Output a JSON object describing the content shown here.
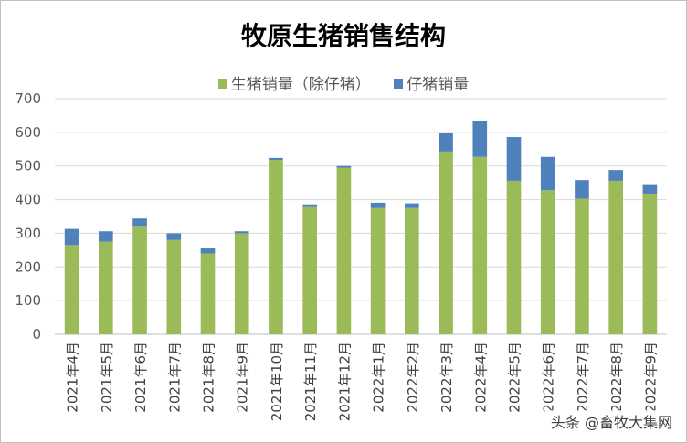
{
  "chart_data": {
    "type": "bar",
    "stacked": true,
    "title": "牧原生猪销售结构",
    "categories": [
      "2021年4月",
      "2021年5月",
      "2021年6月",
      "2021年7月",
      "2021年8月",
      "2021年9月",
      "2021年10月",
      "2021年11月",
      "2021年12月",
      "2022年1月",
      "2022年2月",
      "2022年3月",
      "2022年4月",
      "2022年5月",
      "2022年6月",
      "2022年7月",
      "2022年8月",
      "2022年9月"
    ],
    "series": [
      {
        "name": "生猪销量（除仔猪）",
        "color": "#9bbb59",
        "values": [
          265,
          275,
          322,
          280,
          240,
          300,
          518,
          378,
          495,
          375,
          375,
          543,
          527,
          456,
          428,
          403,
          456,
          418
        ]
      },
      {
        "name": "仔猪销量",
        "color": "#4f81bd",
        "values": [
          48,
          31,
          22,
          20,
          15,
          6,
          6,
          8,
          5,
          16,
          14,
          54,
          106,
          130,
          99,
          55,
          32,
          28
        ]
      }
    ],
    "ylim": [
      0,
      700
    ],
    "yticks": [
      0,
      100,
      200,
      300,
      400,
      500,
      600,
      700
    ],
    "grid": true,
    "legend": "top-center"
  },
  "watermark": "头条 @畜牧大集网"
}
